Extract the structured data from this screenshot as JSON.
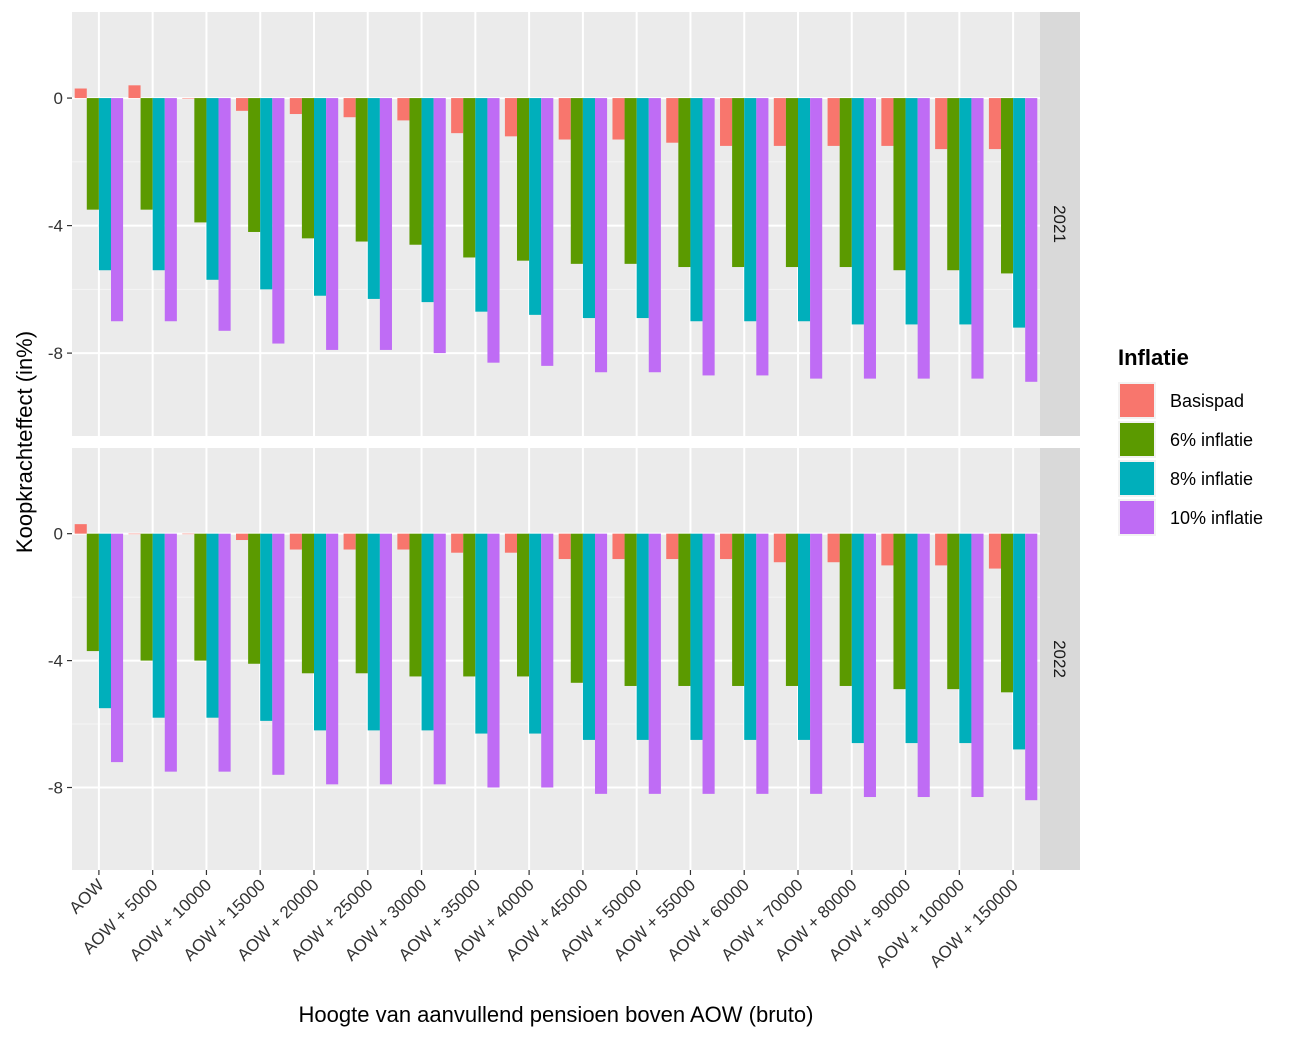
{
  "chart_data": {
    "type": "bar",
    "facet_by": "year",
    "xlabel": "Hoogte van aanvullend pensioen boven AOW (bruto)",
    "ylabel": "Koopkrachteffect (in%)",
    "legend": {
      "title": "Inflatie",
      "position": "right"
    },
    "ylim": [
      -10.6,
      2.7
    ],
    "yticks": [
      0,
      -4,
      -8
    ],
    "grid": true,
    "categories": [
      "AOW",
      "AOW + 5000",
      "AOW + 10000",
      "AOW + 15000",
      "AOW + 20000",
      "AOW + 25000",
      "AOW + 30000",
      "AOW + 35000",
      "AOW + 40000",
      "AOW + 45000",
      "AOW + 50000",
      "AOW + 55000",
      "AOW + 60000",
      "AOW + 70000",
      "AOW + 80000",
      "AOW + 90000",
      "AOW + 100000",
      "AOW + 150000"
    ],
    "series_colors": [
      "#F8766D",
      "#5B9A00",
      "#00AFBB",
      "#BF6CF5"
    ],
    "facets": [
      {
        "label": "2021",
        "series": [
          {
            "name": "Basispad",
            "values": [
              0.3,
              0.4,
              0.0,
              -0.4,
              -0.5,
              -0.6,
              -0.7,
              -1.1,
              -1.2,
              -1.3,
              -1.3,
              -1.4,
              -1.5,
              -1.5,
              -1.5,
              -1.5,
              -1.6,
              -1.6
            ]
          },
          {
            "name": "6% inflatie",
            "values": [
              -3.5,
              -3.5,
              -3.9,
              -4.2,
              -4.4,
              -4.5,
              -4.6,
              -5.0,
              -5.1,
              -5.2,
              -5.2,
              -5.3,
              -5.3,
              -5.3,
              -5.3,
              -5.4,
              -5.4,
              -5.5
            ]
          },
          {
            "name": "8% inflatie",
            "values": [
              -5.4,
              -5.4,
              -5.7,
              -6.0,
              -6.2,
              -6.3,
              -6.4,
              -6.7,
              -6.8,
              -6.9,
              -6.9,
              -7.0,
              -7.0,
              -7.0,
              -7.1,
              -7.1,
              -7.1,
              -7.2
            ]
          },
          {
            "name": "10% inflatie",
            "values": [
              -7.0,
              -7.0,
              -7.3,
              -7.7,
              -7.9,
              -7.9,
              -8.0,
              -8.3,
              -8.4,
              -8.6,
              -8.6,
              -8.7,
              -8.7,
              -8.8,
              -8.8,
              -8.8,
              -8.8,
              -8.9
            ]
          }
        ]
      },
      {
        "label": "2022",
        "series": [
          {
            "name": "Basispad",
            "values": [
              0.3,
              0.0,
              0.0,
              -0.2,
              -0.5,
              -0.5,
              -0.5,
              -0.6,
              -0.6,
              -0.8,
              -0.8,
              -0.8,
              -0.8,
              -0.9,
              -0.9,
              -1.0,
              -1.0,
              -1.1
            ]
          },
          {
            "name": "6% inflatie",
            "values": [
              -3.7,
              -4.0,
              -4.0,
              -4.1,
              -4.4,
              -4.4,
              -4.5,
              -4.5,
              -4.5,
              -4.7,
              -4.8,
              -4.8,
              -4.8,
              -4.8,
              -4.8,
              -4.9,
              -4.9,
              -5.0
            ]
          },
          {
            "name": "8% inflatie",
            "values": [
              -5.5,
              -5.8,
              -5.8,
              -5.9,
              -6.2,
              -6.2,
              -6.2,
              -6.3,
              -6.3,
              -6.5,
              -6.5,
              -6.5,
              -6.5,
              -6.5,
              -6.6,
              -6.6,
              -6.6,
              -6.8
            ]
          },
          {
            "name": "10% inflatie",
            "values": [
              -7.2,
              -7.5,
              -7.5,
              -7.6,
              -7.9,
              -7.9,
              -7.9,
              -8.0,
              -8.0,
              -8.2,
              -8.2,
              -8.2,
              -8.2,
              -8.2,
              -8.3,
              -8.3,
              -8.3,
              -8.4
            ]
          }
        ]
      }
    ]
  }
}
